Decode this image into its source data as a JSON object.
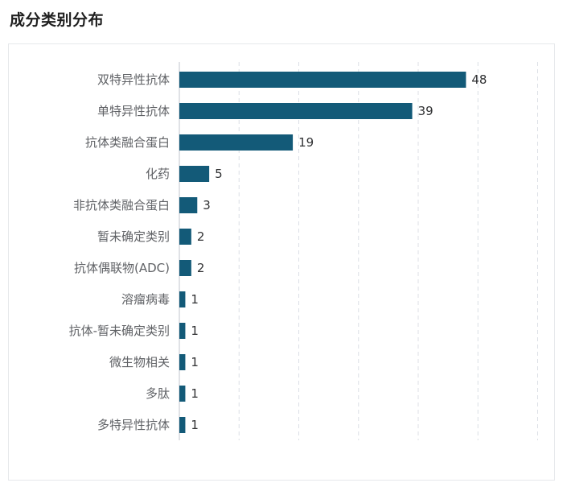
{
  "page": {
    "title": "成分类别分布"
  },
  "colors": {
    "bar": "#135a78",
    "grid": "#dcdfe6",
    "axis": "#c0c4cc"
  },
  "chart_data": {
    "type": "bar",
    "orientation": "horizontal",
    "title": "",
    "xlabel": "",
    "ylabel": "",
    "xlim": [
      0,
      60
    ],
    "grid": true,
    "grid_style": "dashed",
    "categories": [
      "双特异性抗体",
      "单特异性抗体",
      "抗体类融合蛋白",
      "化药",
      "非抗体类融合蛋白",
      "暂未确定类别",
      "抗体偶联物(ADC)",
      "溶瘤病毒",
      "抗体-暂未确定类别",
      "微生物相关",
      "多肽",
      "多特异性抗体"
    ],
    "values": [
      48,
      39,
      19,
      5,
      3,
      2,
      2,
      1,
      1,
      1,
      1,
      1
    ],
    "show_value_labels": true
  }
}
